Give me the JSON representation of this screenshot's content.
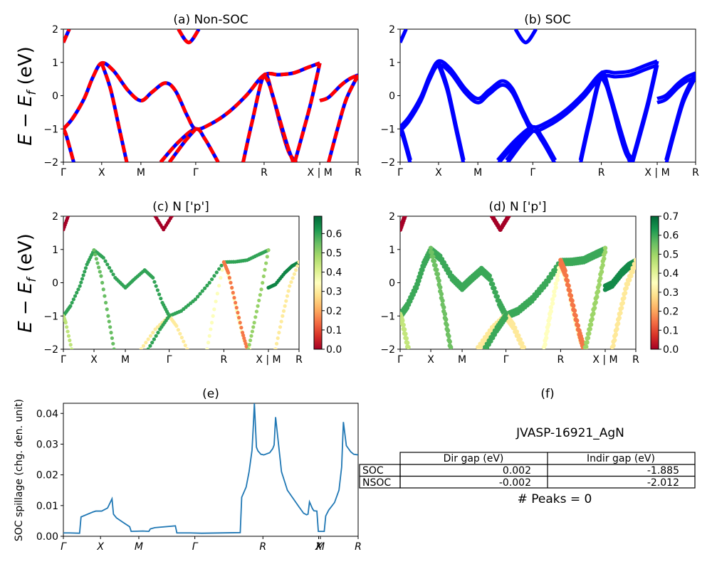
{
  "chart_data": [
    {
      "id": "a",
      "type": "line",
      "title": "(a) Non-SOC",
      "ylabel": "E − E_f (eV)",
      "ylim": [
        -2,
        2
      ],
      "yticks": [
        -2,
        -1,
        0,
        1,
        2
      ],
      "xtick_labels": [
        "Γ",
        "X",
        "M",
        "Γ",
        "R",
        "X | M",
        "R"
      ],
      "xtick_positions": [
        0,
        0.13,
        0.263,
        0.449,
        0.681,
        0.87,
        1.0
      ],
      "style": "red-blue-dashed",
      "bands": [
        [
          [
            0,
            1.6
          ],
          [
            0.02,
            2.0
          ]
        ],
        [
          [
            0.39,
            2.0
          ],
          [
            0.425,
            1.6
          ],
          [
            0.46,
            2.0
          ]
        ],
        [
          [
            0,
            -1.0
          ],
          [
            0.03,
            -0.7
          ],
          [
            0.07,
            -0.1
          ],
          [
            0.1,
            0.55
          ],
          [
            0.13,
            0.98
          ],
          [
            0.17,
            0.75
          ],
          [
            0.22,
            0.15
          ],
          [
            0.263,
            -0.15
          ],
          [
            0.3,
            0.1
          ],
          [
            0.345,
            0.38
          ],
          [
            0.38,
            0.15
          ],
          [
            0.42,
            -0.6
          ],
          [
            0.449,
            -1.0
          ],
          [
            0.5,
            -0.85
          ],
          [
            0.56,
            -0.5
          ],
          [
            0.62,
            0.0
          ],
          [
            0.681,
            0.62
          ],
          [
            0.73,
            0.63
          ],
          [
            0.78,
            0.68
          ],
          [
            0.83,
            0.85
          ],
          [
            0.87,
            0.98
          ]
        ],
        [
          [
            0,
            -1.0
          ],
          [
            0.01,
            -1.2
          ],
          [
            0.035,
            -2.0
          ]
        ],
        [
          [
            0.13,
            0.98
          ],
          [
            0.16,
            0.2
          ],
          [
            0.19,
            -1.0
          ],
          [
            0.215,
            -2.0
          ]
        ],
        [
          [
            0.33,
            -2.0
          ],
          [
            0.39,
            -1.4
          ],
          [
            0.449,
            -1.0
          ],
          [
            0.48,
            -1.3
          ],
          [
            0.525,
            -2.0
          ]
        ],
        [
          [
            0.36,
            -2.0
          ],
          [
            0.41,
            -1.4
          ],
          [
            0.449,
            -1.0
          ]
        ],
        [
          [
            0.61,
            -2.0
          ],
          [
            0.64,
            -0.8
          ],
          [
            0.681,
            0.62
          ],
          [
            0.71,
            0.0
          ],
          [
            0.74,
            -1.0
          ],
          [
            0.765,
            -1.7
          ],
          [
            0.79,
            -2.0
          ]
        ],
        [
          [
            0.681,
            0.62
          ],
          [
            0.7,
            0.3
          ],
          [
            0.73,
            -0.6
          ],
          [
            0.76,
            -1.5
          ],
          [
            0.78,
            -2.0
          ]
        ],
        [
          [
            0.785,
            -2.0
          ],
          [
            0.81,
            -1.2
          ],
          [
            0.84,
            -0.2
          ],
          [
            0.87,
            0.98
          ]
        ],
        [
          [
            0.87,
            -0.15
          ],
          [
            0.9,
            -0.05
          ],
          [
            0.94,
            0.3
          ],
          [
            0.97,
            0.5
          ],
          [
            1.0,
            0.62
          ]
        ],
        [
          [
            0.9,
            -2.0
          ],
          [
            0.93,
            -1.0
          ],
          [
            0.96,
            -0.1
          ],
          [
            1.0,
            0.62
          ]
        ]
      ]
    },
    {
      "id": "b",
      "type": "line",
      "title": "(b) SOC",
      "ylim": [
        -2,
        2
      ],
      "yticks": [
        -2,
        -1,
        0,
        1,
        2
      ],
      "xtick_labels": [
        "Γ",
        "X",
        "M",
        "Γ",
        "R",
        "X | M",
        "R"
      ],
      "xtick_positions": [
        0,
        0.13,
        0.263,
        0.449,
        0.681,
        0.87,
        1.0
      ],
      "color": "#0000ff",
      "soc_split_eV": 0.12
    },
    {
      "id": "c",
      "type": "scatter",
      "title": "(c)  N ['p']",
      "ylabel": "E − E_f (eV)",
      "ylim": [
        -2,
        2
      ],
      "yticks": [
        -2,
        -1,
        0,
        1,
        2
      ],
      "xtick_labels": [
        "Γ",
        "X",
        "M",
        "Γ",
        "R",
        "X | M",
        "R"
      ],
      "colorbar": {
        "cmap": "RdYlGn",
        "range": [
          0,
          0.69
        ],
        "ticks": [
          "0.0",
          "0.1",
          "0.2",
          "0.3",
          "0.4",
          "0.5",
          "0.6"
        ]
      },
      "band_weights": [
        0.0,
        0.0,
        0.6,
        0.45,
        0.55,
        0.3,
        0.6,
        0.35,
        0.15,
        0.5,
        0.65,
        0.3
      ]
    },
    {
      "id": "d",
      "type": "scatter",
      "title": "(d) N ['p']",
      "ylim": [
        -2,
        2
      ],
      "yticks": [
        -2,
        -1,
        0,
        1,
        2
      ],
      "xtick_labels": [
        "Γ",
        "X",
        "M",
        "Γ",
        "R",
        "X | M",
        "R"
      ],
      "colorbar": {
        "cmap": "RdYlGn",
        "range": [
          0,
          0.7
        ],
        "ticks": [
          "0.0",
          "0.1",
          "0.2",
          "0.3",
          "0.4",
          "0.5",
          "0.6",
          "0.7"
        ]
      }
    },
    {
      "id": "e",
      "type": "line",
      "title": "(e)",
      "ylabel": "SOC spillage (chg. den. unit)",
      "ylim": [
        0,
        0.0433
      ],
      "ytick_labels": [
        "0.00",
        "0.01",
        "0.02",
        "0.03",
        "0.04"
      ],
      "yticks": [
        0,
        0.01,
        0.02,
        0.03,
        0.04
      ],
      "xtick_labels": [
        "Γ",
        "X",
        "M",
        "Γ",
        "R",
        "X",
        "M",
        "R"
      ],
      "xtick_positions": [
        0,
        0.126,
        0.256,
        0.446,
        0.677,
        0.866,
        0.872,
        1.0
      ],
      "color": "#1f77b4",
      "x": [
        0,
        0.02,
        0.055,
        0.06,
        0.1,
        0.11,
        0.13,
        0.15,
        0.165,
        0.17,
        0.18,
        0.2,
        0.225,
        0.23,
        0.27,
        0.29,
        0.295,
        0.31,
        0.38,
        0.385,
        0.43,
        0.47,
        0.6,
        0.605,
        0.62,
        0.63,
        0.64,
        0.645,
        0.648,
        0.655,
        0.66,
        0.67,
        0.68,
        0.7,
        0.71,
        0.715,
        0.72,
        0.74,
        0.76,
        0.8,
        0.815,
        0.825,
        0.83,
        0.835,
        0.845,
        0.85,
        0.86,
        0.865,
        0.885,
        0.89,
        0.9,
        0.92,
        0.935,
        0.944,
        0.95,
        0.96,
        0.975,
        0.985,
        1.0
      ],
      "values": [
        0.0011,
        0.0011,
        0.001,
        0.0063,
        0.0079,
        0.0082,
        0.0082,
        0.0092,
        0.0122,
        0.0072,
        0.006,
        0.0047,
        0.0031,
        0.0016,
        0.0017,
        0.0016,
        0.0024,
        0.0028,
        0.0034,
        0.0011,
        0.0011,
        0.001,
        0.0012,
        0.0127,
        0.016,
        0.021,
        0.028,
        0.037,
        0.0433,
        0.029,
        0.0278,
        0.0267,
        0.0265,
        0.0272,
        0.0285,
        0.0297,
        0.0388,
        0.021,
        0.015,
        0.0095,
        0.0075,
        0.007,
        0.0072,
        0.0112,
        0.009,
        0.0083,
        0.0082,
        0.0016,
        0.0016,
        0.0066,
        0.0085,
        0.011,
        0.015,
        0.0225,
        0.0372,
        0.0295,
        0.0275,
        0.0267,
        0.0265
      ]
    },
    {
      "id": "f",
      "type": "table",
      "title": "(f)",
      "subtitle": "JVASP-16921_AgN",
      "columns": [
        "Dir gap (eV)",
        "Indir gap (eV)"
      ],
      "rows": [
        {
          "label": "SOC",
          "values": [
            "0.002",
            "-1.885"
          ]
        },
        {
          "label": "NSOC",
          "values": [
            "-0.002",
            "-2.012"
          ]
        }
      ],
      "footer": "# Peaks = 0"
    }
  ]
}
